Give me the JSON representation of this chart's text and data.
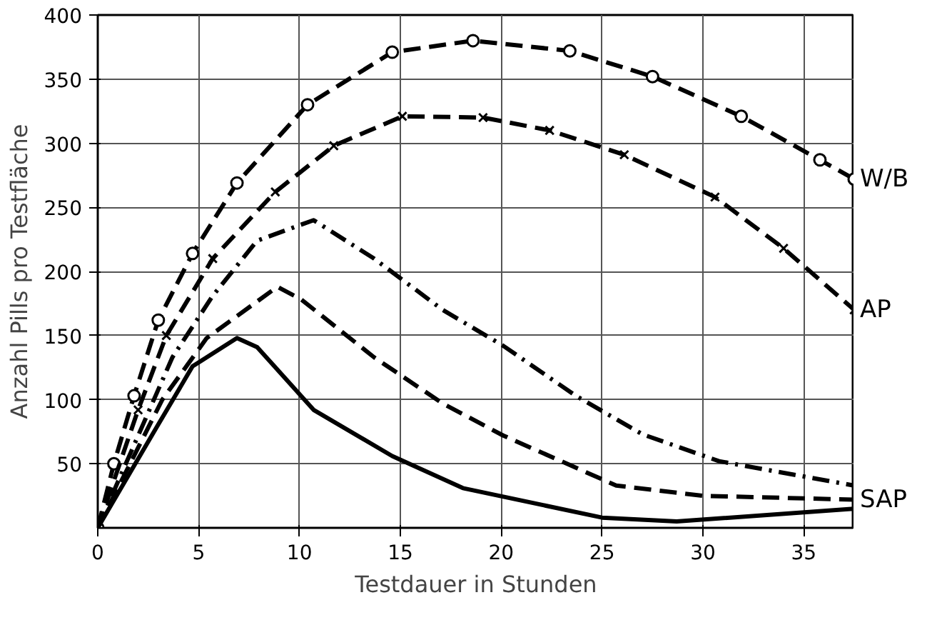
{
  "chart_data": {
    "type": "line",
    "xlabel": "Testdauer in Stunden",
    "ylabel": "Anzahl Pills pro Testfläche",
    "xlim": [
      0,
      37.5
    ],
    "ylim": [
      0,
      400
    ],
    "xticks": [
      0,
      5,
      10,
      15,
      20,
      25,
      30,
      35
    ],
    "yticks": [
      50,
      100,
      150,
      200,
      250,
      300,
      350,
      400
    ],
    "grid": true,
    "legend": false,
    "series": [
      {
        "name": "W/B",
        "color": "#000000",
        "line_style": "dashed",
        "marker": "circle",
        "x": [
          0,
          0.8,
          1.8,
          3.0,
          4.7,
          6.9,
          10.4,
          14.6,
          18.6,
          23.4,
          27.5,
          31.9,
          35.8,
          37.5
        ],
        "values": [
          0,
          50,
          103,
          162,
          214,
          269,
          330,
          371,
          380,
          372,
          352,
          321,
          287,
          272
        ]
      },
      {
        "name": "AP",
        "color": "#000000",
        "line_style": "dashed",
        "marker": "cross",
        "x": [
          0,
          2.0,
          3.4,
          5.7,
          8.8,
          11.7,
          15.1,
          19.1,
          22.4,
          26.1,
          30.6,
          34.0,
          37.5
        ],
        "values": [
          0,
          92,
          150,
          210,
          262,
          298,
          321,
          320,
          310,
          291,
          258,
          218,
          170
        ]
      },
      {
        "color": "#000000",
        "line_style": "dashdot",
        "marker": "none",
        "x": [
          0,
          3.7,
          5.7,
          7.9,
          10.7,
          13.7,
          17.1,
          20.1,
          23.7,
          27.0,
          30.8,
          37.5
        ],
        "values": [
          0,
          133,
          181,
          224,
          240,
          210,
          170,
          142,
          103,
          73,
          52,
          33
        ]
      },
      {
        "name": "SAP",
        "color": "#000000",
        "line_style": "dashed",
        "marker": "none",
        "x": [
          0,
          3.2,
          5.4,
          8.9,
          10.1,
          13.7,
          17.1,
          20.1,
          25.7,
          30.0,
          37.5
        ],
        "values": [
          0,
          100,
          148,
          188,
          178,
          133,
          97,
          72,
          33,
          25,
          22
        ]
      },
      {
        "color": "#000000",
        "line_style": "solid",
        "marker": "none",
        "x": [
          0,
          2.9,
          4.7,
          6.9,
          7.9,
          10.7,
          14.6,
          18.1,
          25.0,
          28.7,
          37.5
        ],
        "values": [
          0,
          78,
          126,
          148,
          141,
          92,
          56,
          31,
          8,
          5,
          15
        ]
      }
    ]
  }
}
